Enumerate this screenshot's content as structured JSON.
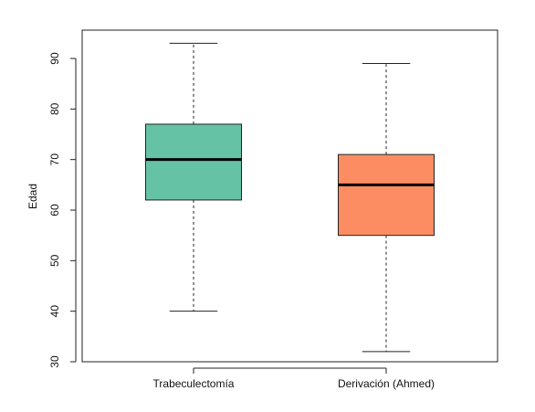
{
  "chart_data": {
    "type": "boxplot",
    "title": "",
    "xlabel": "",
    "ylabel": "Edad",
    "ylim": [
      30,
      95
    ],
    "yticks": [
      30,
      40,
      50,
      60,
      70,
      80,
      90
    ],
    "grid": false,
    "categories": [
      "Trabeculectomía",
      "Derivación (Ahmed)"
    ],
    "series": [
      {
        "category": "Trabeculectomía",
        "whisker_low": 40,
        "q1": 62,
        "median": 70,
        "q3": 77,
        "whisker_high": 93,
        "color": "#66c2a5"
      },
      {
        "category": "Derivación (Ahmed)",
        "whisker_low": 32,
        "q1": 55,
        "median": 65,
        "q3": 71,
        "whisker_high": 89,
        "color": "#fc8d62"
      }
    ]
  }
}
